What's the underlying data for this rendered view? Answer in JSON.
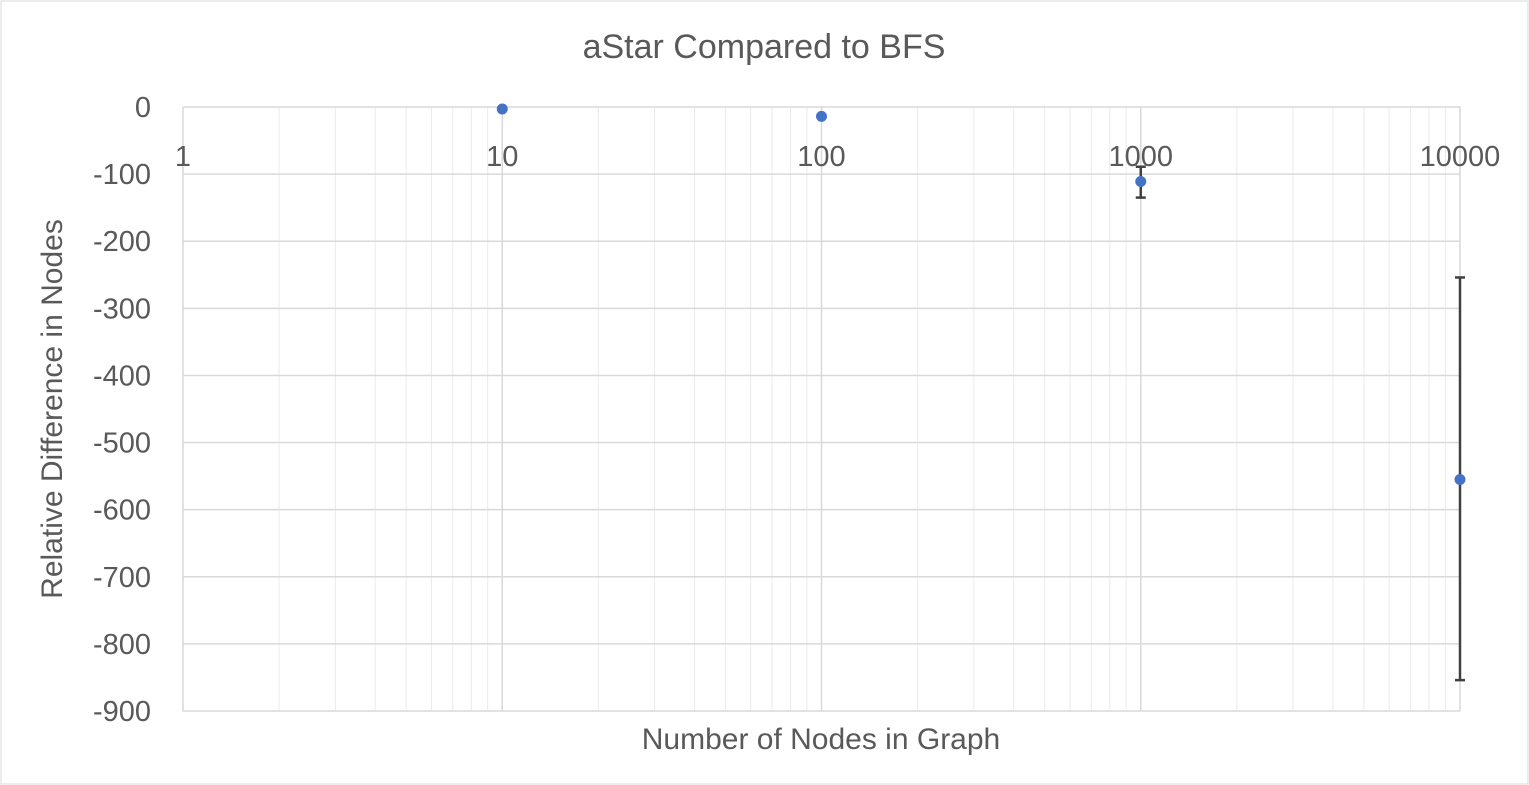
{
  "chart_data": {
    "type": "scatter",
    "title": "aStar Compared to BFS",
    "xlabel": "Number of Nodes in Graph",
    "ylabel": "Relative Difference in Nodes",
    "x_scale": "log",
    "xlim": [
      1,
      10000
    ],
    "ylim": [
      -900,
      0
    ],
    "x_ticks": [
      "1",
      "10",
      "100",
      "1000",
      "10000"
    ],
    "y_ticks": [
      "0",
      "-100",
      "-200",
      "-300",
      "-400",
      "-500",
      "-600",
      "-700",
      "-800",
      "-900"
    ],
    "grid": true,
    "legend": "none",
    "colors": {
      "marker": "#4472c4",
      "error_bar": "#404040",
      "grid": "#d9d9d9",
      "text": "#595959"
    },
    "series": [
      {
        "x": [
          10,
          100,
          1000,
          10000
        ],
        "y": [
          -3,
          -14,
          -111,
          -555
        ],
        "error_low": [
          null,
          null,
          -135,
          -854
        ],
        "error_high": [
          null,
          null,
          -89,
          -254
        ]
      }
    ]
  }
}
